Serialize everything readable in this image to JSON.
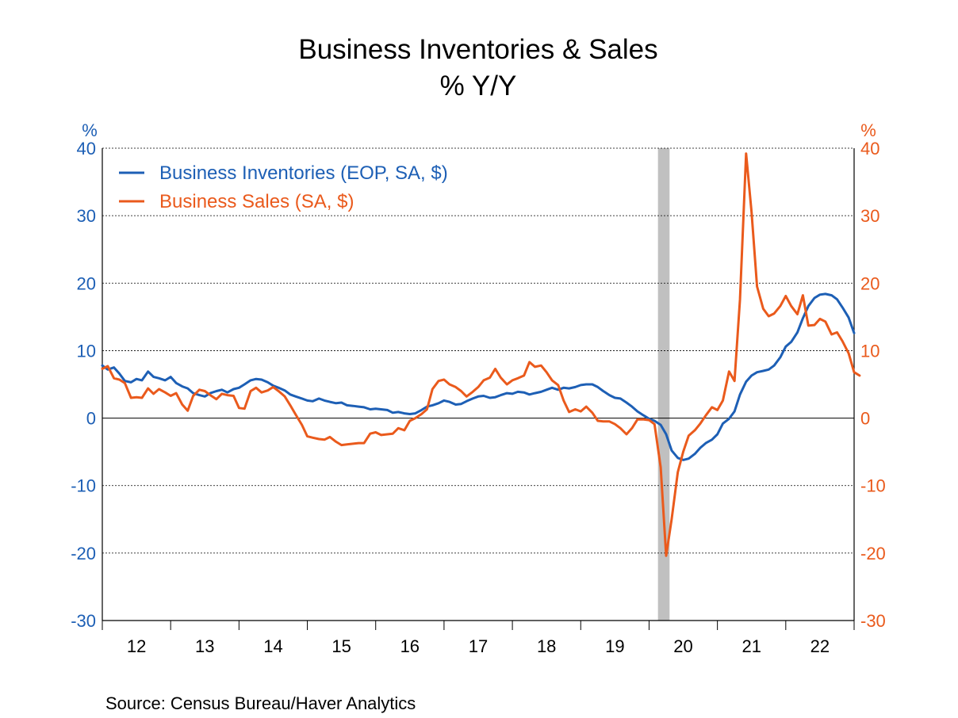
{
  "chart_data": {
    "type": "line",
    "title": "Business Inventories & Sales",
    "subtitle": "% Y/Y",
    "source": "Source:  Census Bureau/Haver Analytics",
    "left_unit": "%",
    "right_unit": "%",
    "ylim": [
      -30,
      40
    ],
    "yticks": [
      -30,
      -20,
      -10,
      0,
      10,
      20,
      30,
      40
    ],
    "yticklabels": [
      "-30",
      "-20",
      "-10",
      "0",
      "10",
      "20",
      "30",
      "40"
    ],
    "xlim": [
      2012,
      2023
    ],
    "year_labels": [
      "12",
      "13",
      "14",
      "15",
      "16",
      "17",
      "18",
      "19",
      "20",
      "21",
      "22"
    ],
    "recession": [
      2020.13,
      2020.3
    ],
    "colors": {
      "inventories": "#1d5fb5",
      "sales": "#ea5a1c",
      "recession": "#c0c0c0",
      "left_axis": "#1d5fb5",
      "right_axis": "#ea5a1c"
    },
    "series": [
      {
        "name": "Business Inventories (EOP, SA, $)",
        "color": "#1d5fb5",
        "points": [
          [
            2012.0,
            7.8
          ],
          [
            2012.08,
            7.2
          ],
          [
            2012.17,
            7.5
          ],
          [
            2012.25,
            6.6
          ],
          [
            2012.33,
            5.5
          ],
          [
            2012.42,
            5.3
          ],
          [
            2012.5,
            5.8
          ],
          [
            2012.58,
            5.6
          ],
          [
            2012.67,
            6.9
          ],
          [
            2012.75,
            6.1
          ],
          [
            2012.83,
            5.9
          ],
          [
            2012.92,
            5.6
          ],
          [
            2013.0,
            6.1
          ],
          [
            2013.08,
            5.2
          ],
          [
            2013.17,
            4.7
          ],
          [
            2013.25,
            4.4
          ],
          [
            2013.33,
            3.7
          ],
          [
            2013.42,
            3.4
          ],
          [
            2013.5,
            3.2
          ],
          [
            2013.58,
            3.7
          ],
          [
            2013.67,
            4.0
          ],
          [
            2013.75,
            4.2
          ],
          [
            2013.83,
            3.8
          ],
          [
            2013.92,
            4.3
          ],
          [
            2014.0,
            4.5
          ],
          [
            2014.08,
            5.0
          ],
          [
            2014.17,
            5.6
          ],
          [
            2014.25,
            5.8
          ],
          [
            2014.33,
            5.7
          ],
          [
            2014.42,
            5.3
          ],
          [
            2014.5,
            4.8
          ],
          [
            2014.58,
            4.5
          ],
          [
            2014.67,
            4.1
          ],
          [
            2014.75,
            3.5
          ],
          [
            2014.83,
            3.2
          ],
          [
            2014.92,
            2.9
          ],
          [
            2015.0,
            2.6
          ],
          [
            2015.08,
            2.5
          ],
          [
            2015.17,
            2.9
          ],
          [
            2015.25,
            2.6
          ],
          [
            2015.33,
            2.4
          ],
          [
            2015.42,
            2.2
          ],
          [
            2015.5,
            2.3
          ],
          [
            2015.58,
            1.9
          ],
          [
            2015.67,
            1.8
          ],
          [
            2015.75,
            1.7
          ],
          [
            2015.83,
            1.6
          ],
          [
            2015.92,
            1.3
          ],
          [
            2016.0,
            1.4
          ],
          [
            2016.08,
            1.3
          ],
          [
            2016.17,
            1.2
          ],
          [
            2016.25,
            0.8
          ],
          [
            2016.33,
            0.9
          ],
          [
            2016.42,
            0.7
          ],
          [
            2016.5,
            0.6
          ],
          [
            2016.58,
            0.7
          ],
          [
            2016.67,
            1.2
          ],
          [
            2016.75,
            1.7
          ],
          [
            2016.83,
            1.9
          ],
          [
            2016.92,
            2.2
          ],
          [
            2017.0,
            2.6
          ],
          [
            2017.08,
            2.4
          ],
          [
            2017.17,
            2.0
          ],
          [
            2017.25,
            2.1
          ],
          [
            2017.33,
            2.5
          ],
          [
            2017.42,
            2.9
          ],
          [
            2017.5,
            3.2
          ],
          [
            2017.58,
            3.3
          ],
          [
            2017.67,
            3.0
          ],
          [
            2017.75,
            3.1
          ],
          [
            2017.83,
            3.4
          ],
          [
            2017.92,
            3.7
          ],
          [
            2018.0,
            3.6
          ],
          [
            2018.08,
            3.9
          ],
          [
            2018.17,
            3.8
          ],
          [
            2018.25,
            3.5
          ],
          [
            2018.33,
            3.7
          ],
          [
            2018.42,
            3.9
          ],
          [
            2018.5,
            4.2
          ],
          [
            2018.58,
            4.5
          ],
          [
            2018.67,
            4.2
          ],
          [
            2018.75,
            4.5
          ],
          [
            2018.83,
            4.4
          ],
          [
            2018.92,
            4.6
          ],
          [
            2019.0,
            4.9
          ],
          [
            2019.08,
            5.0
          ],
          [
            2019.17,
            5.0
          ],
          [
            2019.25,
            4.6
          ],
          [
            2019.33,
            4.0
          ],
          [
            2019.42,
            3.4
          ],
          [
            2019.5,
            3.0
          ],
          [
            2019.58,
            2.9
          ],
          [
            2019.67,
            2.3
          ],
          [
            2019.75,
            1.7
          ],
          [
            2019.83,
            1.0
          ],
          [
            2019.92,
            0.4
          ],
          [
            2020.0,
            -0.1
          ],
          [
            2020.08,
            -0.4
          ],
          [
            2020.17,
            -1.0
          ],
          [
            2020.25,
            -2.4
          ],
          [
            2020.33,
            -4.8
          ],
          [
            2020.42,
            -5.9
          ],
          [
            2020.5,
            -6.2
          ],
          [
            2020.58,
            -6.0
          ],
          [
            2020.67,
            -5.3
          ],
          [
            2020.75,
            -4.4
          ],
          [
            2020.83,
            -3.7
          ],
          [
            2020.92,
            -3.2
          ],
          [
            2021.0,
            -2.4
          ],
          [
            2021.08,
            -0.8
          ],
          [
            2021.17,
            -0.1
          ],
          [
            2021.25,
            1.0
          ],
          [
            2021.33,
            3.5
          ],
          [
            2021.42,
            5.4
          ],
          [
            2021.5,
            6.3
          ],
          [
            2021.58,
            6.8
          ],
          [
            2021.67,
            7.0
          ],
          [
            2021.75,
            7.2
          ],
          [
            2021.83,
            7.8
          ],
          [
            2021.92,
            9.0
          ],
          [
            2022.0,
            10.6
          ],
          [
            2022.08,
            11.3
          ],
          [
            2022.17,
            12.7
          ],
          [
            2022.25,
            14.8
          ],
          [
            2022.33,
            16.6
          ],
          [
            2022.42,
            17.8
          ],
          [
            2022.5,
            18.3
          ],
          [
            2022.58,
            18.4
          ],
          [
            2022.67,
            18.2
          ],
          [
            2022.75,
            17.6
          ],
          [
            2022.83,
            16.4
          ],
          [
            2022.92,
            14.9
          ],
          [
            2023.0,
            12.6
          ]
        ]
      },
      {
        "name": "Business Sales (SA, $)",
        "color": "#ea5a1c",
        "points": [
          [
            2012.0,
            7.3
          ],
          [
            2012.08,
            7.7
          ],
          [
            2012.17,
            5.9
          ],
          [
            2012.25,
            5.7
          ],
          [
            2012.33,
            5.2
          ],
          [
            2012.42,
            3.0
          ],
          [
            2012.5,
            3.1
          ],
          [
            2012.58,
            3.0
          ],
          [
            2012.67,
            4.4
          ],
          [
            2012.75,
            3.6
          ],
          [
            2012.83,
            4.3
          ],
          [
            2012.92,
            3.8
          ],
          [
            2013.0,
            3.3
          ],
          [
            2013.08,
            3.7
          ],
          [
            2013.17,
            2.0
          ],
          [
            2013.25,
            1.1
          ],
          [
            2013.33,
            3.3
          ],
          [
            2013.42,
            4.2
          ],
          [
            2013.5,
            4.0
          ],
          [
            2013.58,
            3.4
          ],
          [
            2013.67,
            2.8
          ],
          [
            2013.75,
            3.6
          ],
          [
            2013.83,
            3.4
          ],
          [
            2013.92,
            3.3
          ],
          [
            2014.0,
            1.5
          ],
          [
            2014.08,
            1.4
          ],
          [
            2014.17,
            4.0
          ],
          [
            2014.25,
            4.5
          ],
          [
            2014.33,
            3.8
          ],
          [
            2014.42,
            4.1
          ],
          [
            2014.5,
            4.6
          ],
          [
            2014.58,
            4.0
          ],
          [
            2014.67,
            3.2
          ],
          [
            2014.75,
            1.9
          ],
          [
            2014.83,
            0.5
          ],
          [
            2014.92,
            -1.0
          ],
          [
            2015.0,
            -2.7
          ],
          [
            2015.08,
            -2.9
          ],
          [
            2015.17,
            -3.1
          ],
          [
            2015.25,
            -3.2
          ],
          [
            2015.33,
            -2.8
          ],
          [
            2015.42,
            -3.5
          ],
          [
            2015.5,
            -4.0
          ],
          [
            2015.58,
            -3.9
          ],
          [
            2015.67,
            -3.8
          ],
          [
            2015.75,
            -3.7
          ],
          [
            2015.83,
            -3.7
          ],
          [
            2015.92,
            -2.3
          ],
          [
            2016.0,
            -2.1
          ],
          [
            2016.08,
            -2.5
          ],
          [
            2016.17,
            -2.4
          ],
          [
            2016.25,
            -2.3
          ],
          [
            2016.33,
            -1.5
          ],
          [
            2016.42,
            -1.8
          ],
          [
            2016.5,
            -0.4
          ],
          [
            2016.58,
            0.0
          ],
          [
            2016.67,
            0.6
          ],
          [
            2016.75,
            1.3
          ],
          [
            2016.83,
            4.3
          ],
          [
            2016.92,
            5.5
          ],
          [
            2017.0,
            5.7
          ],
          [
            2017.08,
            5.0
          ],
          [
            2017.17,
            4.6
          ],
          [
            2017.25,
            4.0
          ],
          [
            2017.33,
            3.2
          ],
          [
            2017.42,
            3.9
          ],
          [
            2017.5,
            4.6
          ],
          [
            2017.58,
            5.6
          ],
          [
            2017.67,
            6.0
          ],
          [
            2017.75,
            7.3
          ],
          [
            2017.83,
            6.0
          ],
          [
            2017.92,
            5.0
          ],
          [
            2018.0,
            5.6
          ],
          [
            2018.08,
            5.9
          ],
          [
            2018.17,
            6.3
          ],
          [
            2018.25,
            8.3
          ],
          [
            2018.33,
            7.6
          ],
          [
            2018.42,
            7.8
          ],
          [
            2018.5,
            6.8
          ],
          [
            2018.58,
            5.6
          ],
          [
            2018.67,
            4.9
          ],
          [
            2018.75,
            2.6
          ],
          [
            2018.83,
            0.9
          ],
          [
            2018.92,
            1.3
          ],
          [
            2019.0,
            1.0
          ],
          [
            2019.08,
            1.7
          ],
          [
            2019.17,
            0.8
          ],
          [
            2019.25,
            -0.4
          ],
          [
            2019.33,
            -0.5
          ],
          [
            2019.42,
            -0.5
          ],
          [
            2019.5,
            -0.9
          ],
          [
            2019.58,
            -1.5
          ],
          [
            2019.67,
            -2.4
          ],
          [
            2019.75,
            -1.5
          ],
          [
            2019.83,
            -0.2
          ],
          [
            2019.92,
            -0.2
          ],
          [
            2020.0,
            -0.3
          ],
          [
            2020.08,
            -0.9
          ],
          [
            2020.17,
            -7.3
          ],
          [
            2020.25,
            -20.4
          ],
          [
            2020.33,
            -15.0
          ],
          [
            2020.42,
            -8.0
          ],
          [
            2020.5,
            -5.0
          ],
          [
            2020.58,
            -2.6
          ],
          [
            2020.67,
            -1.8
          ],
          [
            2020.75,
            -0.8
          ],
          [
            2020.83,
            0.4
          ],
          [
            2020.92,
            1.6
          ],
          [
            2021.0,
            1.2
          ],
          [
            2021.08,
            2.6
          ],
          [
            2021.17,
            6.9
          ],
          [
            2021.25,
            5.5
          ],
          [
            2021.33,
            17.6
          ],
          [
            2021.42,
            39.2
          ],
          [
            2021.5,
            30.5
          ],
          [
            2021.58,
            19.5
          ],
          [
            2021.67,
            16.2
          ],
          [
            2021.75,
            15.1
          ],
          [
            2021.83,
            15.5
          ],
          [
            2021.92,
            16.6
          ],
          [
            2022.0,
            18.1
          ],
          [
            2022.08,
            16.6
          ],
          [
            2022.17,
            15.4
          ],
          [
            2022.25,
            18.2
          ],
          [
            2022.33,
            13.7
          ],
          [
            2022.42,
            13.8
          ],
          [
            2022.5,
            14.7
          ],
          [
            2022.58,
            14.3
          ],
          [
            2022.67,
            12.4
          ],
          [
            2022.75,
            12.7
          ],
          [
            2022.83,
            11.4
          ],
          [
            2022.92,
            9.6
          ],
          [
            2023.0,
            6.8
          ],
          [
            2023.08,
            6.3
          ]
        ]
      }
    ]
  }
}
